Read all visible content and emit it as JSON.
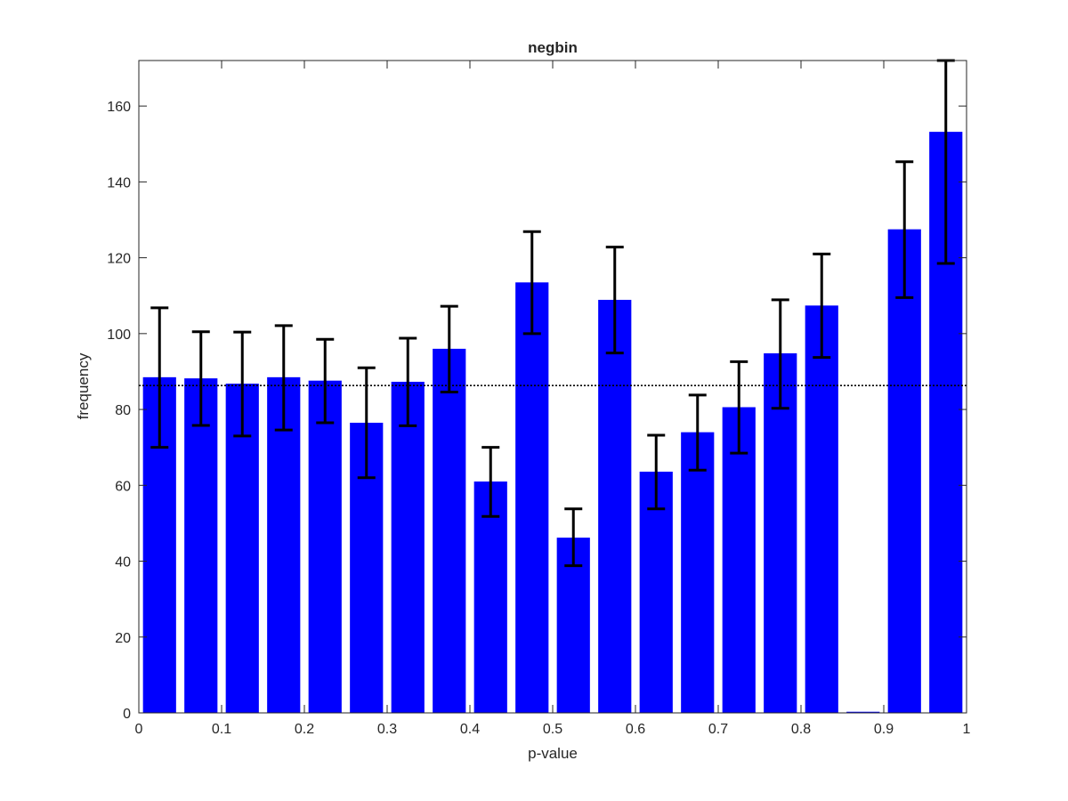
{
  "chart_data": {
    "type": "bar",
    "title": "negbin",
    "xlabel": "p-value",
    "ylabel": "frequency",
    "xlim": [
      0,
      1
    ],
    "ylim": [
      0,
      172
    ],
    "xticks": [
      "0",
      "0.1",
      "0.2",
      "0.3",
      "0.4",
      "0.5",
      "0.6",
      "0.7",
      "0.8",
      "0.9",
      "1"
    ],
    "yticks": [
      "0",
      "20",
      "40",
      "60",
      "80",
      "100",
      "120",
      "140",
      "160"
    ],
    "grid": false,
    "bar_color": "#0000ff",
    "bin_width": 0.05,
    "bin_centers": [
      0.025,
      0.075,
      0.125,
      0.175,
      0.225,
      0.275,
      0.325,
      0.375,
      0.425,
      0.475,
      0.525,
      0.575,
      0.625,
      0.675,
      0.725,
      0.775,
      0.825,
      0.875,
      0.925,
      0.975
    ],
    "values": [
      88.5,
      88.2,
      86.8,
      88.5,
      87.6,
      76.5,
      87.3,
      96.0,
      61.0,
      113.5,
      46.2,
      108.9,
      63.6,
      74.0,
      80.6,
      94.8,
      107.4,
      0.3,
      127.5,
      153.2
    ],
    "error_lower": [
      70.0,
      75.8,
      73.0,
      74.6,
      76.5,
      62.0,
      75.7,
      84.6,
      51.8,
      100.0,
      38.8,
      94.9,
      53.8,
      64.0,
      68.5,
      80.3,
      93.7,
      null,
      109.5,
      118.5
    ],
    "error_upper": [
      106.8,
      100.5,
      100.4,
      102.1,
      98.5,
      91.0,
      98.8,
      107.2,
      70.0,
      126.9,
      53.8,
      122.8,
      73.2,
      83.8,
      92.6,
      108.9,
      121.0,
      null,
      145.3,
      172.0
    ],
    "reference_line": {
      "y": 86.3,
      "style": "dotted",
      "color": "#000000"
    },
    "error_bar_color": "#000000"
  }
}
